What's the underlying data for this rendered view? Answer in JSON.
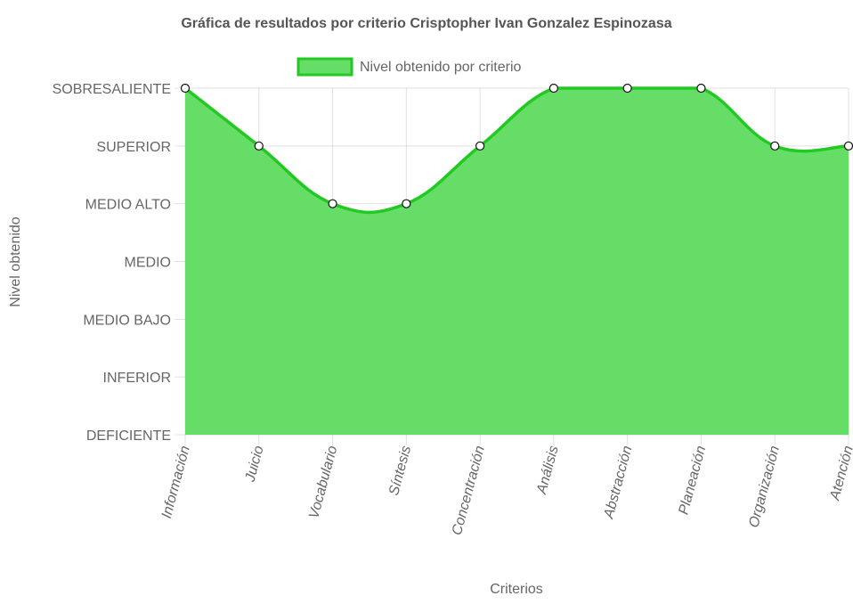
{
  "chart_data": {
    "type": "area",
    "title": "Gráfica de resultados por criterio Crisptopher Ivan Gonzalez Espinozasa",
    "xlabel": "Criterios",
    "ylabel": "Nivel obtenido",
    "categories": [
      "Información",
      "Juicio",
      "Vocabulario",
      "Síntesis",
      "Concentración",
      "Análisis",
      "Abstracción",
      "Planeación",
      "Organización",
      "Atención"
    ],
    "y_levels": [
      "DEFICIENTE",
      "INFERIOR",
      "MEDIO BAJO",
      "MEDIO",
      "MEDIO ALTO",
      "SUPERIOR",
      "SOBRESALIENTE"
    ],
    "series": [
      {
        "name": "Nivel obtenido por criterio",
        "values": [
          7,
          6,
          5,
          5,
          6,
          7,
          7,
          7,
          6,
          6
        ]
      }
    ],
    "ylim": [
      1,
      7
    ],
    "grid": true,
    "legend_position": "top",
    "colors": {
      "fill": "#66dd66",
      "line": "#22c922",
      "point_fill": "#ffffff",
      "point_stroke": "#111111",
      "grid": "#000000"
    }
  }
}
